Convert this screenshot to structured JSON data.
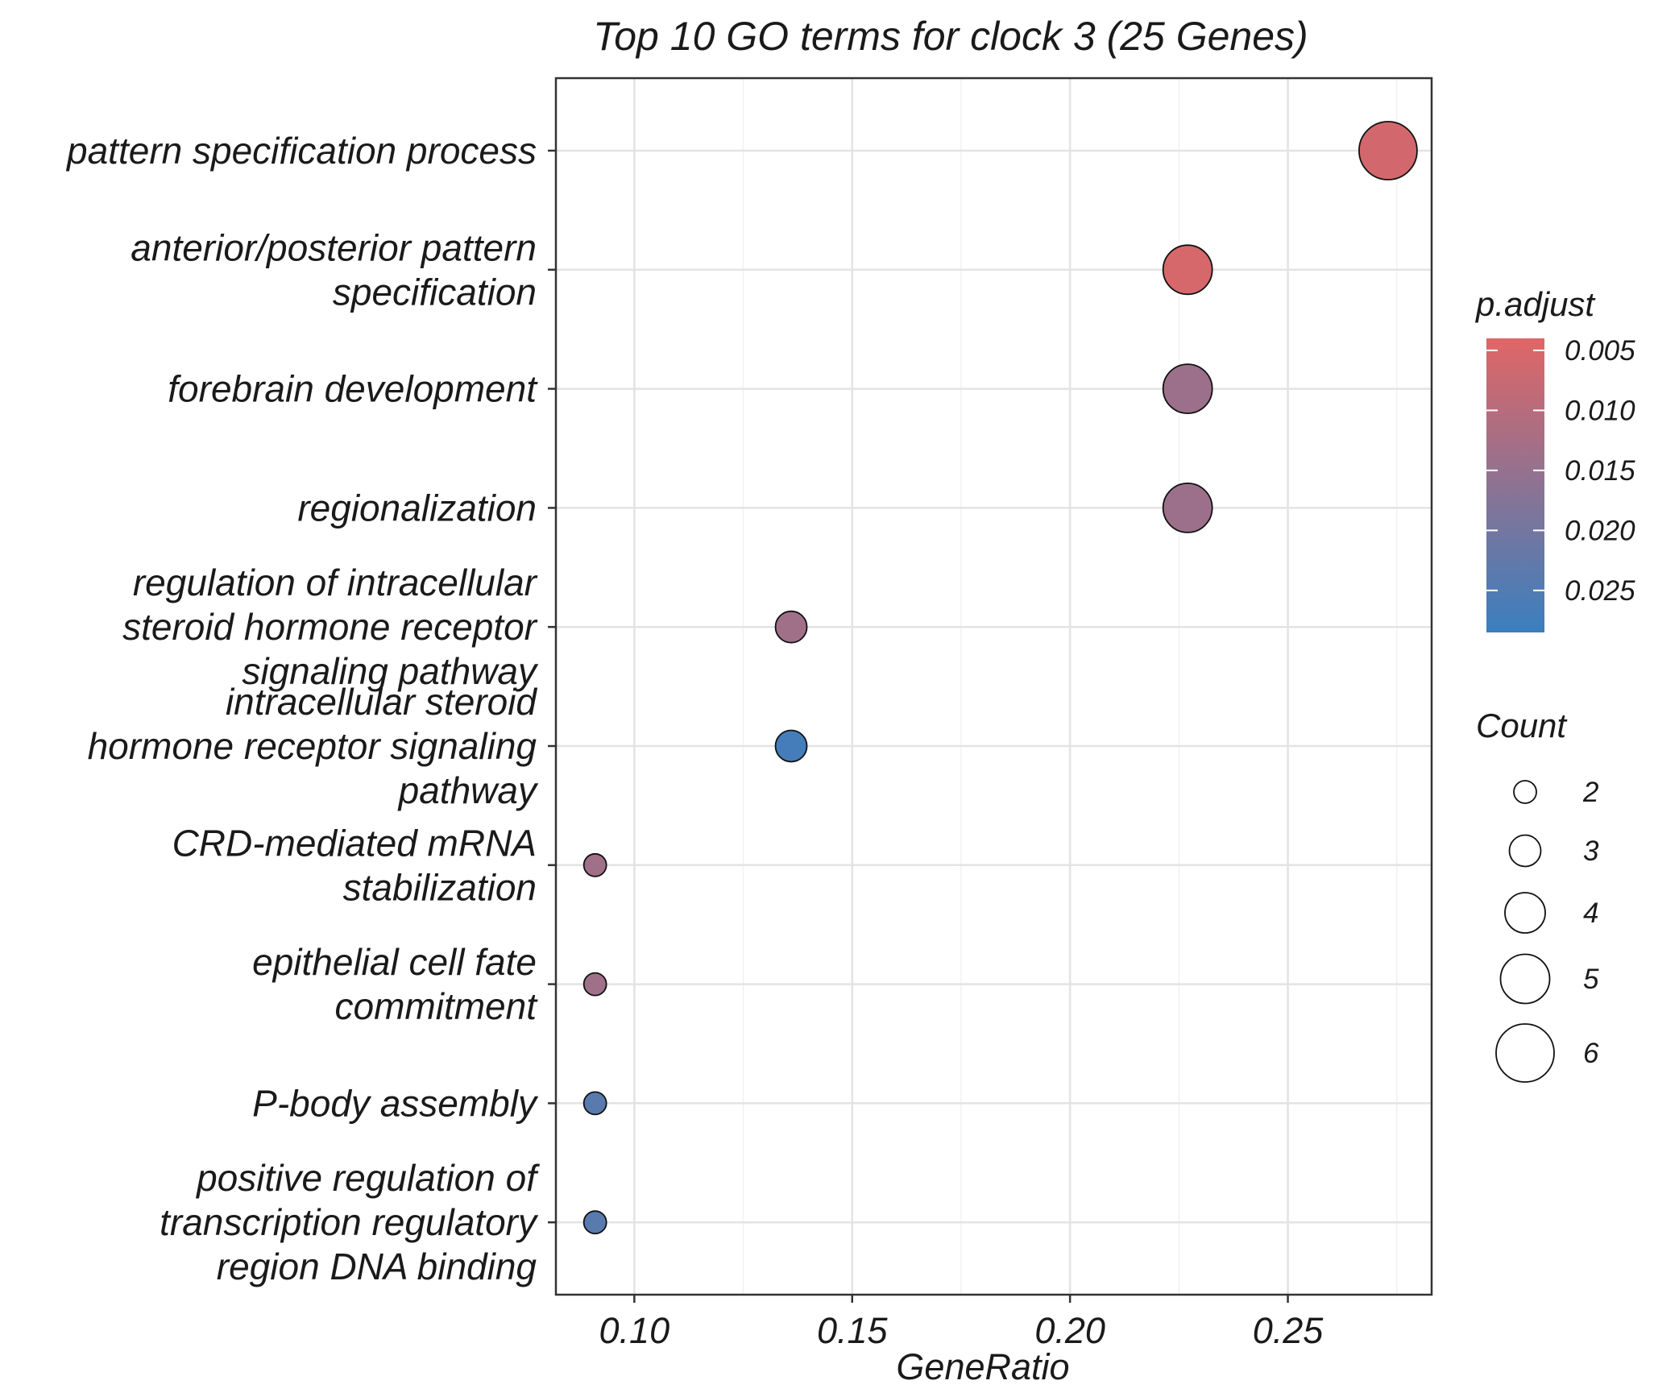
{
  "chart_data": {
    "type": "scatter",
    "title": "Top 10 GO terms for clock 3 (25 Genes)",
    "xlabel": "GeneRatio",
    "ylabel": "",
    "xlim": [
      0.082,
      0.283
    ],
    "x_ticks": [
      0.1,
      0.15,
      0.2,
      0.25
    ],
    "x_tick_labels": [
      "0.10",
      "0.15",
      "0.20",
      "0.25"
    ],
    "grid": true,
    "categories": [
      [
        "pattern specification process"
      ],
      [
        "anterior/posterior pattern",
        "specification"
      ],
      [
        "forebrain development"
      ],
      [
        "regionalization"
      ],
      [
        "regulation of intracellular",
        "steroid hormone receptor",
        "signaling pathway"
      ],
      [
        "intracellular steroid",
        "hormone receptor signaling",
        "pathway"
      ],
      [
        "CRD-mediated mRNA",
        "stabilization"
      ],
      [
        "epithelial cell fate",
        "commitment"
      ],
      [
        "P-body assembly"
      ],
      [
        "positive regulation of",
        "transcription regulatory",
        "region DNA binding"
      ]
    ],
    "points": [
      {
        "gene_ratio": 0.273,
        "count": 6,
        "p_adjust": 0.006
      },
      {
        "gene_ratio": 0.227,
        "count": 5,
        "p_adjust": 0.0055
      },
      {
        "gene_ratio": 0.227,
        "count": 5,
        "p_adjust": 0.014
      },
      {
        "gene_ratio": 0.227,
        "count": 5,
        "p_adjust": 0.014
      },
      {
        "gene_ratio": 0.136,
        "count": 3,
        "p_adjust": 0.0135
      },
      {
        "gene_ratio": 0.136,
        "count": 3,
        "p_adjust": 0.027
      },
      {
        "gene_ratio": 0.091,
        "count": 2,
        "p_adjust": 0.0135
      },
      {
        "gene_ratio": 0.091,
        "count": 2,
        "p_adjust": 0.0135
      },
      {
        "gene_ratio": 0.091,
        "count": 2,
        "p_adjust": 0.024
      },
      {
        "gene_ratio": 0.091,
        "count": 2,
        "p_adjust": 0.024
      }
    ],
    "color_legend": {
      "title": "p.adjust",
      "ticks": [
        0.005,
        0.01,
        0.015,
        0.02,
        0.025
      ],
      "tick_labels": [
        "0.005",
        "0.010",
        "0.015",
        "0.020",
        "0.025"
      ],
      "range": [
        0.004,
        0.0285
      ],
      "low_color": "#e06666",
      "high_color": "#3a7fbf"
    },
    "size_legend": {
      "title": "Count",
      "values": [
        2,
        3,
        4,
        5,
        6
      ],
      "labels": [
        "2",
        "3",
        "4",
        "5",
        "6"
      ],
      "range": [
        2,
        6
      ]
    }
  }
}
